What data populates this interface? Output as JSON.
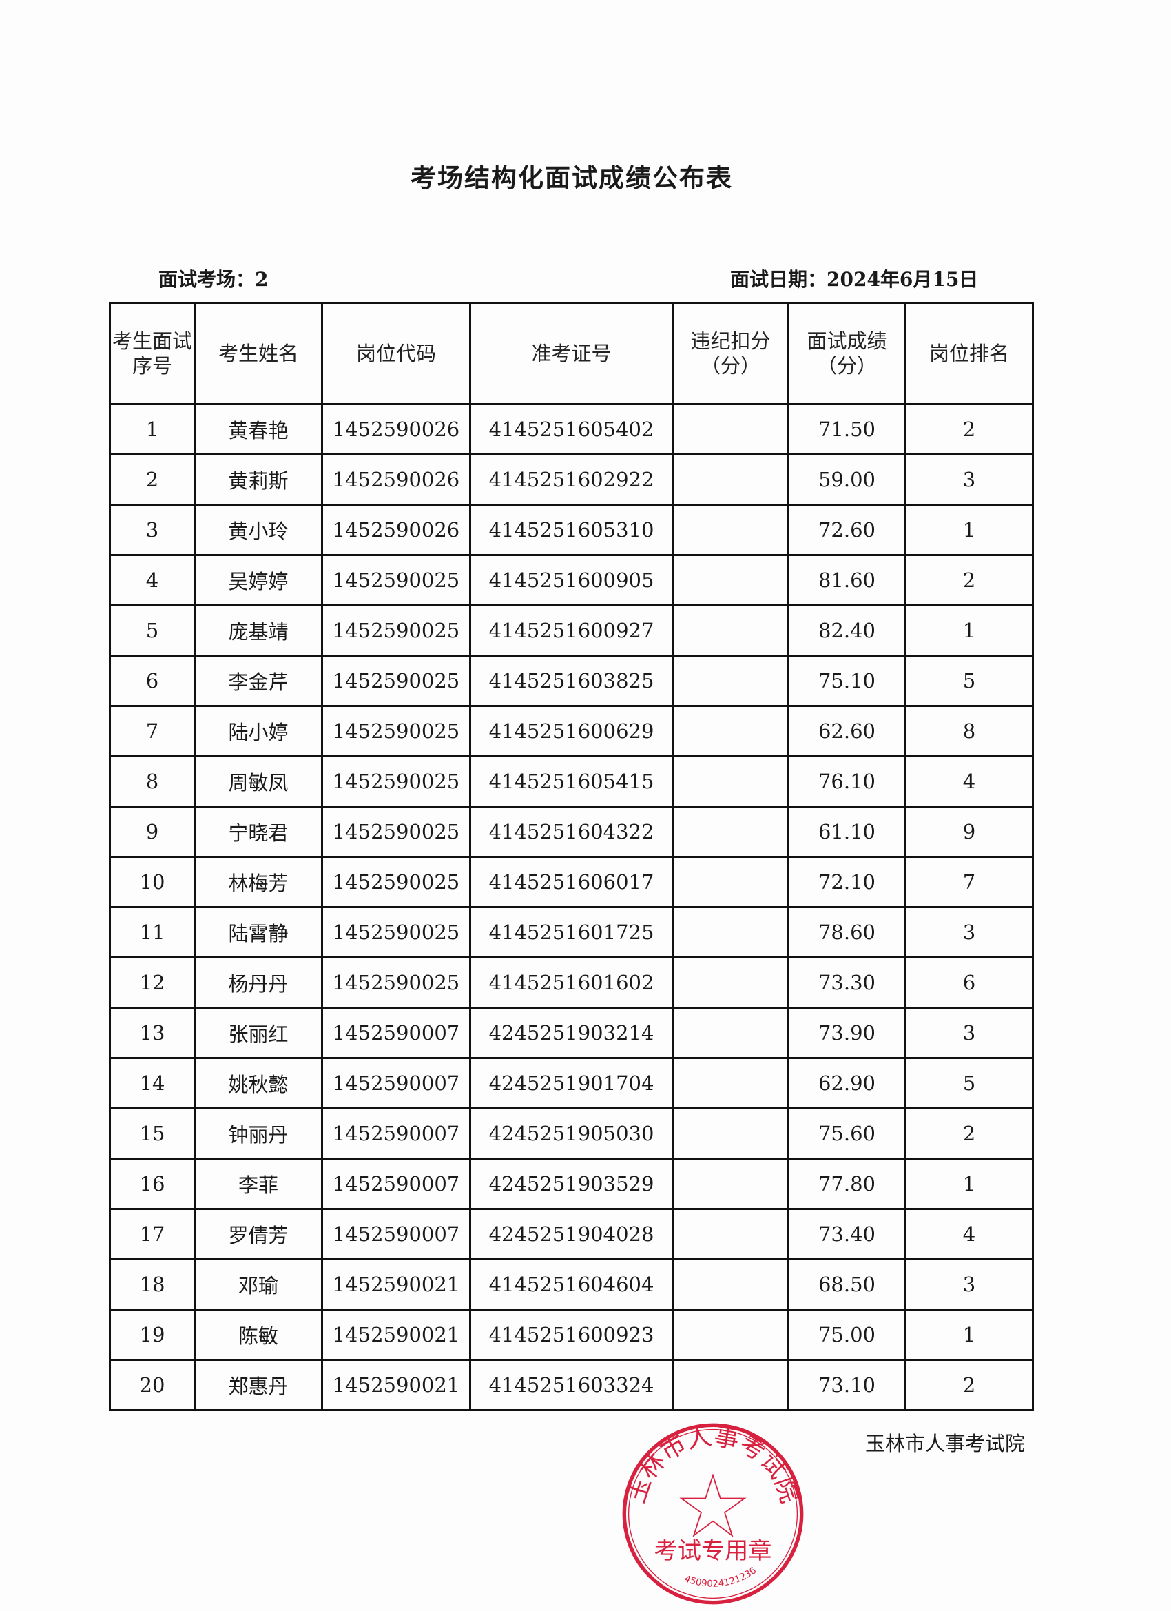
{
  "title": "考场结构化面试成绩公布表",
  "venue_label": "面试考场：2",
  "date_label": "面试日期：2024年6月15日",
  "columns": [
    "考生面试序号",
    "考生姓名",
    "岗位代码",
    "准考证号",
    "违纪扣分（分）",
    "面试成绩（分）",
    "岗位排名"
  ],
  "rows": [
    [
      "1",
      "黄春艳",
      "1452590026",
      "4145251605402",
      "",
      "71.50",
      "2"
    ],
    [
      "2",
      "黄莉斯",
      "1452590026",
      "4145251602922",
      "",
      "59.00",
      "3"
    ],
    [
      "3",
      "黄小玲",
      "1452590026",
      "4145251605310",
      "",
      "72.60",
      "1"
    ],
    [
      "4",
      "吴婷婷",
      "1452590025",
      "4145251600905",
      "",
      "81.60",
      "2"
    ],
    [
      "5",
      "庞基靖",
      "1452590025",
      "4145251600927",
      "",
      "82.40",
      "1"
    ],
    [
      "6",
      "李金芹",
      "1452590025",
      "4145251603825",
      "",
      "75.10",
      "5"
    ],
    [
      "7",
      "陆小婷",
      "1452590025",
      "4145251600629",
      "",
      "62.60",
      "8"
    ],
    [
      "8",
      "周敏凤",
      "1452590025",
      "4145251605415",
      "",
      "76.10",
      "4"
    ],
    [
      "9",
      "宁晓君",
      "1452590025",
      "4145251604322",
      "",
      "61.10",
      "9"
    ],
    [
      "10",
      "林梅芳",
      "1452590025",
      "4145251606017",
      "",
      "72.10",
      "7"
    ],
    [
      "11",
      "陆霄静",
      "1452590025",
      "4145251601725",
      "",
      "78.60",
      "3"
    ],
    [
      "12",
      "杨丹丹",
      "1452590025",
      "4145251601602",
      "",
      "73.30",
      "6"
    ],
    [
      "13",
      "张丽红",
      "1452590007",
      "4245251903214",
      "",
      "73.90",
      "3"
    ],
    [
      "14",
      "姚秋懿",
      "1452590007",
      "4245251901704",
      "",
      "62.90",
      "5"
    ],
    [
      "15",
      "钟丽丹",
      "1452590007",
      "4245251905030",
      "",
      "75.60",
      "2"
    ],
    [
      "16",
      "李菲",
      "1452590007",
      "4245251903529",
      "",
      "77.80",
      "1"
    ],
    [
      "17",
      "罗倩芳",
      "1452590007",
      "4245251904028",
      "",
      "73.40",
      "4"
    ],
    [
      "18",
      "邓瑜",
      "1452590021",
      "4145251604604",
      "",
      "68.50",
      "3"
    ],
    [
      "19",
      "陈敏",
      "1452590021",
      "4145251600923",
      "",
      "75.00",
      "1"
    ],
    [
      "20",
      "郑惠丹",
      "1452590021",
      "4145251603324",
      "",
      "73.10",
      "2"
    ]
  ],
  "footer": "玉林市人事考试院",
  "stamp": {
    "ring_text": "玉林市人事考试院",
    "bottom_text": "考试专用章",
    "number": "4509024121236",
    "color": "#d8213f"
  }
}
